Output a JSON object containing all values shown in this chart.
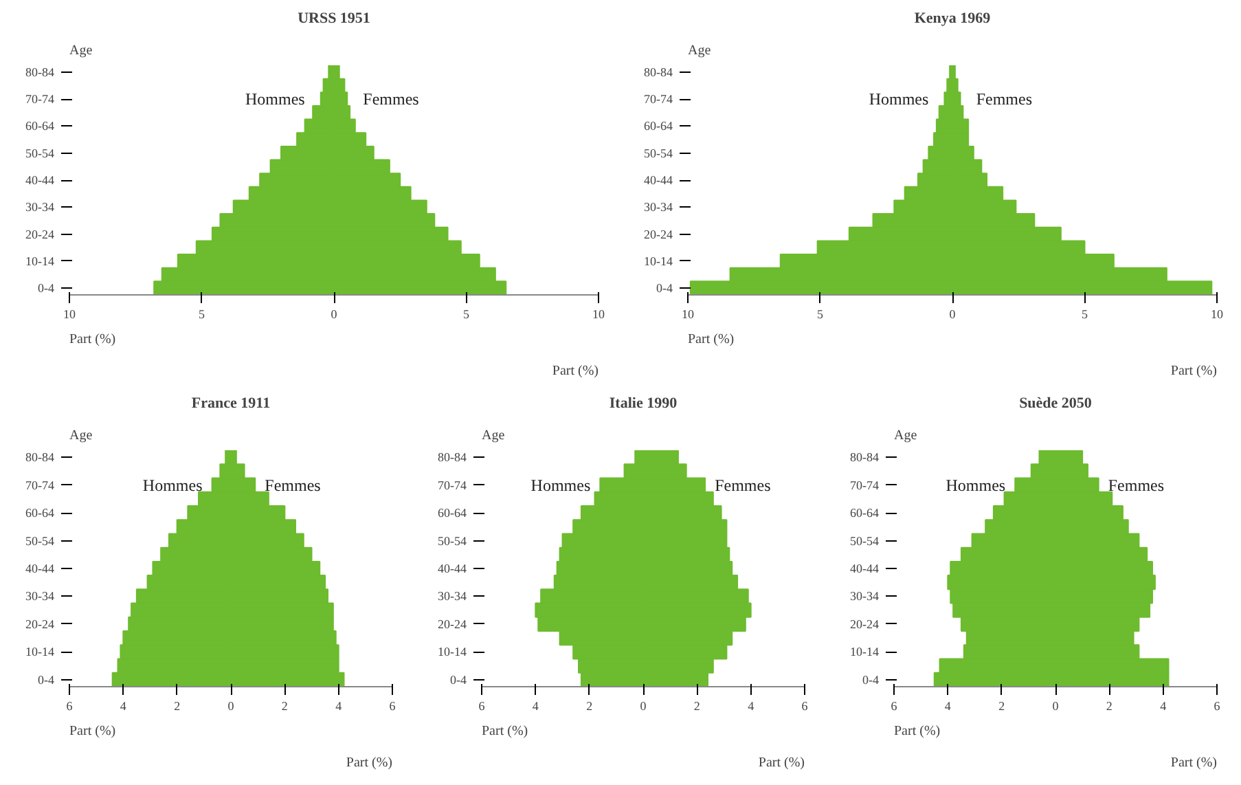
{
  "chart_data": [
    {
      "type": "bar",
      "orientation": "horizontal",
      "title": "URSS 1951",
      "stacked": true,
      "ylabel": "Age",
      "xlabel": "Part (%)",
      "annotations": [
        "Part (%)"
      ],
      "grid": false,
      "legend": false,
      "categories": [
        "80-84",
        null,
        "70-74",
        null,
        "60-64",
        null,
        "50-54",
        null,
        "40-44",
        null,
        "30-34",
        null,
        "20-24",
        null,
        "10-14",
        null,
        "0-4"
      ],
      "xlim": [
        -10,
        10
      ],
      "xticks": [
        {
          "value": -10,
          "label": "10"
        },
        {
          "value": -5,
          "label": "5"
        },
        0,
        5,
        10
      ],
      "series": [
        {
          "name": "Hommes",
          "color": "#6dbb2f",
          "values": [
            -0.2,
            -0.4,
            -0.5,
            -0.8,
            -1.1,
            -1.4,
            -2.0,
            -2.4,
            -2.8,
            -3.2,
            -3.8,
            -4.3,
            -4.6,
            -5.2,
            -5.9,
            -6.5,
            -6.8
          ]
        },
        {
          "name": "Femmes",
          "color": "#6dbb2f",
          "values": [
            0.2,
            0.4,
            0.5,
            0.6,
            0.8,
            1.2,
            1.5,
            2.1,
            2.5,
            2.9,
            3.5,
            3.8,
            4.3,
            4.8,
            5.5,
            6.1,
            6.5
          ]
        }
      ]
    },
    {
      "type": "bar",
      "orientation": "horizontal",
      "title": "Kenya 1969",
      "stacked": true,
      "ylabel": "Age",
      "xlabel": "Part (%)",
      "annotations": [
        "Part (%)"
      ],
      "grid": false,
      "legend": false,
      "categories": [
        "80-84",
        null,
        "70-74",
        null,
        "60-64",
        null,
        "50-54",
        null,
        "40-44",
        null,
        "30-34",
        null,
        "20-24",
        null,
        "10-14",
        null,
        "0-4"
      ],
      "xlim": [
        -10,
        10
      ],
      "xticks": [
        {
          "value": -10,
          "label": "10"
        },
        {
          "value": -5,
          "label": "5"
        },
        0,
        5,
        10
      ],
      "series": [
        {
          "name": "Hommes",
          "color": "#6dbb2f",
          "values": [
            -0.1,
            -0.2,
            -0.3,
            -0.5,
            -0.6,
            -0.7,
            -0.9,
            -1.1,
            -1.3,
            -1.8,
            -2.2,
            -3.0,
            -3.9,
            -5.1,
            -6.5,
            -8.4,
            -9.9
          ]
        },
        {
          "name": "Femmes",
          "color": "#6dbb2f",
          "values": [
            0.1,
            0.2,
            0.3,
            0.4,
            0.6,
            0.6,
            0.8,
            1.1,
            1.3,
            1.9,
            2.4,
            3.1,
            4.1,
            5.0,
            6.1,
            8.1,
            9.8
          ]
        }
      ]
    },
    {
      "type": "bar",
      "orientation": "horizontal",
      "title": "France 1911",
      "stacked": true,
      "ylabel": "Age",
      "xlabel": "Part (%)",
      "annotations": [
        "Part (%)"
      ],
      "grid": false,
      "legend": false,
      "categories": [
        "80-84",
        null,
        "70-74",
        null,
        "60-64",
        null,
        "50-54",
        null,
        "40-44",
        null,
        "30-34",
        null,
        "20-24",
        null,
        "10-14",
        null,
        "0-4"
      ],
      "xlim": [
        -6,
        6
      ],
      "xticks": [
        {
          "value": -6,
          "label": "6"
        },
        {
          "value": -4,
          "label": "4"
        },
        {
          "value": -2,
          "label": "2"
        },
        0,
        2,
        4,
        6
      ],
      "series": [
        {
          "name": "Hommes",
          "color": "#6dbb2f",
          "values": [
            -0.2,
            -0.4,
            -0.7,
            -1.2,
            -1.6,
            -2.0,
            -2.3,
            -2.6,
            -2.9,
            -3.1,
            -3.5,
            -3.7,
            -3.8,
            -4.0,
            -4.1,
            -4.2,
            -4.4
          ]
        },
        {
          "name": "Femmes",
          "color": "#6dbb2f",
          "values": [
            0.2,
            0.5,
            0.9,
            1.4,
            2.0,
            2.4,
            2.7,
            3.0,
            3.3,
            3.5,
            3.6,
            3.8,
            3.8,
            3.9,
            4.0,
            4.0,
            4.2
          ]
        }
      ]
    },
    {
      "type": "bar",
      "orientation": "horizontal",
      "title": "Italie 1990",
      "stacked": true,
      "ylabel": "Age",
      "xlabel": "Part (%)",
      "annotations": [
        "Part (%)"
      ],
      "grid": false,
      "legend": false,
      "categories": [
        "80-84",
        null,
        "70-74",
        null,
        "60-64",
        null,
        "50-54",
        null,
        "40-44",
        null,
        "30-34",
        null,
        "20-24",
        null,
        "10-14",
        null,
        "0-4"
      ],
      "xlim": [
        -6,
        6
      ],
      "xticks": [
        {
          "value": -6,
          "label": "6"
        },
        {
          "value": -4,
          "label": "4"
        },
        {
          "value": -2,
          "label": "2"
        },
        0,
        2,
        4,
        6
      ],
      "series": [
        {
          "name": "Hommes",
          "color": "#6dbb2f",
          "values": [
            -0.3,
            -0.7,
            -1.6,
            -1.8,
            -2.3,
            -2.6,
            -3.0,
            -3.1,
            -3.2,
            -3.3,
            -3.8,
            -4.0,
            -3.9,
            -3.1,
            -2.6,
            -2.4,
            -2.3
          ]
        },
        {
          "name": "Femmes",
          "color": "#6dbb2f",
          "values": [
            1.3,
            1.6,
            2.3,
            2.6,
            2.9,
            3.1,
            3.1,
            3.2,
            3.3,
            3.5,
            3.9,
            4.0,
            3.8,
            3.3,
            3.1,
            2.6,
            2.4
          ]
        }
      ]
    },
    {
      "type": "bar",
      "orientation": "horizontal",
      "title": "Suède 2050",
      "stacked": true,
      "ylabel": "Age",
      "xlabel": "Part (%)",
      "annotations": [
        "Part (%)"
      ],
      "grid": false,
      "legend": false,
      "categories": [
        "80-84",
        null,
        "70-74",
        null,
        "60-64",
        null,
        "50-54",
        null,
        "40-44",
        null,
        "30-34",
        null,
        "20-24",
        null,
        "10-14",
        null,
        "0-4"
      ],
      "xlim": [
        -6,
        6
      ],
      "xticks": [
        {
          "value": -6,
          "label": "6"
        },
        {
          "value": -4,
          "label": "4"
        },
        {
          "value": -2,
          "label": "2"
        },
        0,
        2,
        4,
        6
      ],
      "series": [
        {
          "name": "Hommes",
          "color": "#6dbb2f",
          "values": [
            -0.6,
            -0.9,
            -1.5,
            -1.9,
            -2.3,
            -2.6,
            -3.1,
            -3.5,
            -3.9,
            -4.0,
            -3.9,
            -3.8,
            -3.5,
            -3.3,
            -3.4,
            -4.3,
            -4.5
          ]
        },
        {
          "name": "Femmes",
          "color": "#6dbb2f",
          "values": [
            1.0,
            1.2,
            1.6,
            2.1,
            2.5,
            2.7,
            3.1,
            3.4,
            3.6,
            3.7,
            3.6,
            3.5,
            3.1,
            2.9,
            3.1,
            4.2,
            4.2
          ]
        }
      ]
    }
  ]
}
